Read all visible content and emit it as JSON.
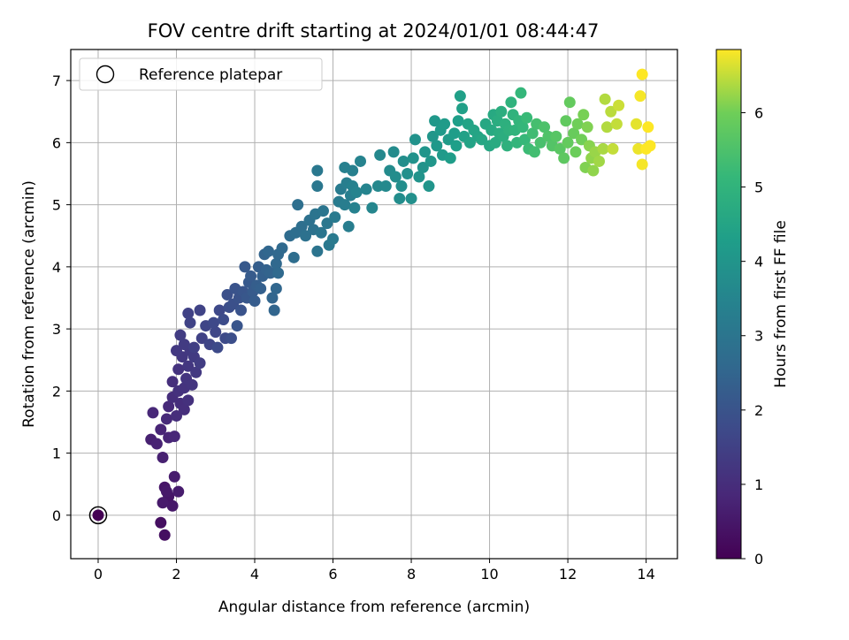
{
  "chart_data": {
    "type": "scatter",
    "title": "FOV centre drift starting at 2024/01/01 08:44:47",
    "xlabel": "Angular distance from reference (arcmin)",
    "ylabel": "Rotation from reference (arcmin)",
    "xlim": [
      -0.7,
      14.8
    ],
    "ylim": [
      -0.7,
      7.5
    ],
    "xticks": [
      0,
      2,
      4,
      6,
      8,
      10,
      12,
      14
    ],
    "yticks": [
      0,
      1,
      2,
      3,
      4,
      5,
      6,
      7
    ],
    "grid": true,
    "legend": {
      "placement": "top-left",
      "entries": [
        "Reference platepar"
      ]
    },
    "reference_point": {
      "x": 0,
      "y": 0,
      "label": "Reference platepar"
    },
    "colormap": "viridis",
    "colorbar": {
      "label": "Hours from first FF file",
      "min": 0,
      "max": 6.85,
      "ticks": [
        0,
        1,
        2,
        3,
        4,
        5,
        6
      ]
    },
    "points": [
      [
        0,
        0,
        0
      ],
      [
        1.7,
        -0.32,
        0.3
      ],
      [
        1.6,
        -0.12,
        0.3
      ],
      [
        1.8,
        0.3,
        0.45
      ],
      [
        1.7,
        0.45,
        0.45
      ],
      [
        1.9,
        0.15,
        0.5
      ],
      [
        1.75,
        0.38,
        0.5
      ],
      [
        2.05,
        0.38,
        0.6
      ],
      [
        1.95,
        0.62,
        0.6
      ],
      [
        1.65,
        0.2,
        0.55
      ],
      [
        1.65,
        0.93,
        0.7
      ],
      [
        1.35,
        1.22,
        0.7
      ],
      [
        1.5,
        1.15,
        0.75
      ],
      [
        1.6,
        1.38,
        0.8
      ],
      [
        1.8,
        1.25,
        0.8
      ],
      [
        1.95,
        1.27,
        0.85
      ],
      [
        1.4,
        1.65,
        0.85
      ],
      [
        1.75,
        1.55,
        0.9
      ],
      [
        1.8,
        1.75,
        0.9
      ],
      [
        2.0,
        1.6,
        1.0
      ],
      [
        2.1,
        1.8,
        1.0
      ],
      [
        1.9,
        1.9,
        1.0
      ],
      [
        2.2,
        1.7,
        1.05
      ],
      [
        2.3,
        1.85,
        1.1
      ],
      [
        1.9,
        2.15,
        1.05
      ],
      [
        2.05,
        2.0,
        1.1
      ],
      [
        2.2,
        2.05,
        1.15
      ],
      [
        2.05,
        2.35,
        1.15
      ],
      [
        2.25,
        2.2,
        1.2
      ],
      [
        2.4,
        2.1,
        1.2
      ],
      [
        2.3,
        2.4,
        1.25
      ],
      [
        2.15,
        2.55,
        1.25
      ],
      [
        2.35,
        2.65,
        1.3
      ],
      [
        2.5,
        2.3,
        1.3
      ],
      [
        2.45,
        2.55,
        1.35
      ],
      [
        2.2,
        2.75,
        1.35
      ],
      [
        2.0,
        2.65,
        1.3
      ],
      [
        2.1,
        2.9,
        1.4
      ],
      [
        2.6,
        2.45,
        1.4
      ],
      [
        2.45,
        2.7,
        1.45
      ],
      [
        2.65,
        2.85,
        1.5
      ],
      [
        2.3,
        3.25,
        1.5
      ],
      [
        2.6,
        3.3,
        1.55
      ],
      [
        2.35,
        3.1,
        1.55
      ],
      [
        2.75,
        3.05,
        1.6
      ],
      [
        2.85,
        2.75,
        1.6
      ],
      [
        3.0,
        2.95,
        1.65
      ],
      [
        2.95,
        3.1,
        1.7
      ],
      [
        3.1,
        3.3,
        1.7
      ],
      [
        3.05,
        2.7,
        1.75
      ],
      [
        3.25,
        2.85,
        1.75
      ],
      [
        3.2,
        3.15,
        1.8
      ],
      [
        3.35,
        3.35,
        1.85
      ],
      [
        3.4,
        2.85,
        1.85
      ],
      [
        3.3,
        3.55,
        1.9
      ],
      [
        3.45,
        3.4,
        1.9
      ],
      [
        3.6,
        3.5,
        1.95
      ],
      [
        3.5,
        3.65,
        2.0
      ],
      [
        3.65,
        3.3,
        2.0
      ],
      [
        3.55,
        3.05,
        2.05
      ],
      [
        3.7,
        3.6,
        2.05
      ],
      [
        3.8,
        3.5,
        2.1
      ],
      [
        3.85,
        3.75,
        2.15
      ],
      [
        3.75,
        4.0,
        2.15
      ],
      [
        3.95,
        3.6,
        2.2
      ],
      [
        3.9,
        3.85,
        2.2
      ],
      [
        4.0,
        3.45,
        2.25
      ],
      [
        4.05,
        3.7,
        2.3
      ],
      [
        4.1,
        4.0,
        2.3
      ],
      [
        4.2,
        3.85,
        2.35
      ],
      [
        4.15,
        3.65,
        2.35
      ],
      [
        4.3,
        3.95,
        2.4
      ],
      [
        4.25,
        4.2,
        2.45
      ],
      [
        4.4,
        3.9,
        2.45
      ],
      [
        4.45,
        3.5,
        2.5
      ],
      [
        4.5,
        3.3,
        2.5
      ],
      [
        4.55,
        3.65,
        2.55
      ],
      [
        4.35,
        4.25,
        2.55
      ],
      [
        4.55,
        4.05,
        2.6
      ],
      [
        4.6,
        4.2,
        2.6
      ],
      [
        4.7,
        4.3,
        2.65
      ],
      [
        4.6,
        3.9,
        2.65
      ],
      [
        4.9,
        4.5,
        2.7
      ],
      [
        5.0,
        4.15,
        2.75
      ],
      [
        5.05,
        4.55,
        2.75
      ],
      [
        5.2,
        4.65,
        2.8
      ],
      [
        5.1,
        5.0,
        2.8
      ],
      [
        5.3,
        4.5,
        2.85
      ],
      [
        5.4,
        4.75,
        2.85
      ],
      [
        5.5,
        4.6,
        2.9
      ],
      [
        5.55,
        4.85,
        2.95
      ],
      [
        5.6,
        4.25,
        2.95
      ],
      [
        5.7,
        4.55,
        3.0
      ],
      [
        5.75,
        4.9,
        3.0
      ],
      [
        5.85,
        4.7,
        3.05
      ],
      [
        5.6,
        5.3,
        3.05
      ],
      [
        5.6,
        5.55,
        3.1
      ],
      [
        5.9,
        4.35,
        3.1
      ],
      [
        6.0,
        4.45,
        3.15
      ],
      [
        6.05,
        4.8,
        3.15
      ],
      [
        6.15,
        5.05,
        3.2
      ],
      [
        6.2,
        5.25,
        3.2
      ],
      [
        6.3,
        5.0,
        3.25
      ],
      [
        6.4,
        4.65,
        3.25
      ],
      [
        6.35,
        5.35,
        3.3
      ],
      [
        6.45,
        5.15,
        3.3
      ],
      [
        6.3,
        5.6,
        3.35
      ],
      [
        6.5,
        5.55,
        3.35
      ],
      [
        6.55,
        4.95,
        3.4
      ],
      [
        6.5,
        5.3,
        3.4
      ],
      [
        6.6,
        5.2,
        3.45
      ],
      [
        6.7,
        5.7,
        3.45
      ],
      [
        6.85,
        5.25,
        3.5
      ],
      [
        7.0,
        4.95,
        3.55
      ],
      [
        7.15,
        5.3,
        3.6
      ],
      [
        7.2,
        5.8,
        3.6
      ],
      [
        7.35,
        5.3,
        3.65
      ],
      [
        7.45,
        5.55,
        3.7
      ],
      [
        7.55,
        5.85,
        3.7
      ],
      [
        7.6,
        5.45,
        3.75
      ],
      [
        7.7,
        5.1,
        3.75
      ],
      [
        7.75,
        5.3,
        3.8
      ],
      [
        7.8,
        5.7,
        3.8
      ],
      [
        7.9,
        5.5,
        3.85
      ],
      [
        8.0,
        5.1,
        3.85
      ],
      [
        8.05,
        5.75,
        3.9
      ],
      [
        8.1,
        6.05,
        3.9
      ],
      [
        8.2,
        5.45,
        3.95
      ],
      [
        8.3,
        5.6,
        3.95
      ],
      [
        8.35,
        5.85,
        4.0
      ],
      [
        8.45,
        5.3,
        4.0
      ],
      [
        8.5,
        5.7,
        4.05
      ],
      [
        8.55,
        6.1,
        4.05
      ],
      [
        8.6,
        6.35,
        4.1
      ],
      [
        8.65,
        5.95,
        4.1
      ],
      [
        8.75,
        6.2,
        4.15
      ],
      [
        8.8,
        5.8,
        4.15
      ],
      [
        8.85,
        6.3,
        4.2
      ],
      [
        8.95,
        6.05,
        4.2
      ],
      [
        9.0,
        5.75,
        4.25
      ],
      [
        9.1,
        6.15,
        4.25
      ],
      [
        9.15,
        5.95,
        4.3
      ],
      [
        9.2,
        6.35,
        4.3
      ],
      [
        9.25,
        6.75,
        4.35
      ],
      [
        9.3,
        6.55,
        4.35
      ],
      [
        9.35,
        6.1,
        4.4
      ],
      [
        9.45,
        6.3,
        4.45
      ],
      [
        9.5,
        6.0,
        4.45
      ],
      [
        9.6,
        6.2,
        4.5
      ],
      [
        9.7,
        6.1,
        4.5
      ],
      [
        9.8,
        6.05,
        4.55
      ],
      [
        9.9,
        6.3,
        4.6
      ],
      [
        10.0,
        5.95,
        4.6
      ],
      [
        10.05,
        6.2,
        4.65
      ],
      [
        10.1,
        6.45,
        4.65
      ],
      [
        10.15,
        6.0,
        4.7
      ],
      [
        10.2,
        6.35,
        4.75
      ],
      [
        10.25,
        6.15,
        4.75
      ],
      [
        10.3,
        6.5,
        4.8
      ],
      [
        10.35,
        6.1,
        4.8
      ],
      [
        10.4,
        6.3,
        4.85
      ],
      [
        10.45,
        5.95,
        4.9
      ],
      [
        10.5,
        6.2,
        4.9
      ],
      [
        10.55,
        6.65,
        4.95
      ],
      [
        10.6,
        6.45,
        4.95
      ],
      [
        10.65,
        6.2,
        5.0
      ],
      [
        10.7,
        6.0,
        5.05
      ],
      [
        10.75,
        6.35,
        5.05
      ],
      [
        10.8,
        6.8,
        5.1
      ],
      [
        10.85,
        6.25,
        5.1
      ],
      [
        10.9,
        6.05,
        5.15
      ],
      [
        10.95,
        6.4,
        5.2
      ],
      [
        11.0,
        5.9,
        5.25
      ],
      [
        11.1,
        6.15,
        5.3
      ],
      [
        11.15,
        5.85,
        5.35
      ],
      [
        11.2,
        6.3,
        5.4
      ],
      [
        11.3,
        6.0,
        5.45
      ],
      [
        11.4,
        6.25,
        5.5
      ],
      [
        11.5,
        6.1,
        5.55
      ],
      [
        11.6,
        5.95,
        5.6
      ],
      [
        11.7,
        6.1,
        5.65
      ],
      [
        11.8,
        5.9,
        5.7
      ],
      [
        11.9,
        5.75,
        5.75
      ],
      [
        11.95,
        6.35,
        5.8
      ],
      [
        12.0,
        6.0,
        5.85
      ],
      [
        12.05,
        6.65,
        5.85
      ],
      [
        12.15,
        6.15,
        5.9
      ],
      [
        12.2,
        5.85,
        5.95
      ],
      [
        12.25,
        6.3,
        6.0
      ],
      [
        12.35,
        6.05,
        6.0
      ],
      [
        12.4,
        6.45,
        6.05
      ],
      [
        12.45,
        5.6,
        6.1
      ],
      [
        12.5,
        6.25,
        6.1
      ],
      [
        12.55,
        5.95,
        6.15
      ],
      [
        12.6,
        5.75,
        6.2
      ],
      [
        12.65,
        5.55,
        6.2
      ],
      [
        12.7,
        5.85,
        6.25
      ],
      [
        12.8,
        5.7,
        6.3
      ],
      [
        12.9,
        5.9,
        6.35
      ],
      [
        12.95,
        6.7,
        6.4
      ],
      [
        13.0,
        6.25,
        6.4
      ],
      [
        13.1,
        6.5,
        6.45
      ],
      [
        13.15,
        5.9,
        6.5
      ],
      [
        13.25,
        6.3,
        6.5
      ],
      [
        13.3,
        6.6,
        6.55
      ],
      [
        13.75,
        6.3,
        6.7
      ],
      [
        13.8,
        5.9,
        6.75
      ],
      [
        13.85,
        6.75,
        6.8
      ],
      [
        13.9,
        7.1,
        6.85
      ],
      [
        13.9,
        5.65,
        6.8
      ],
      [
        14.0,
        5.9,
        6.85
      ],
      [
        14.05,
        6.25,
        6.85
      ],
      [
        14.1,
        5.95,
        6.85
      ]
    ]
  }
}
